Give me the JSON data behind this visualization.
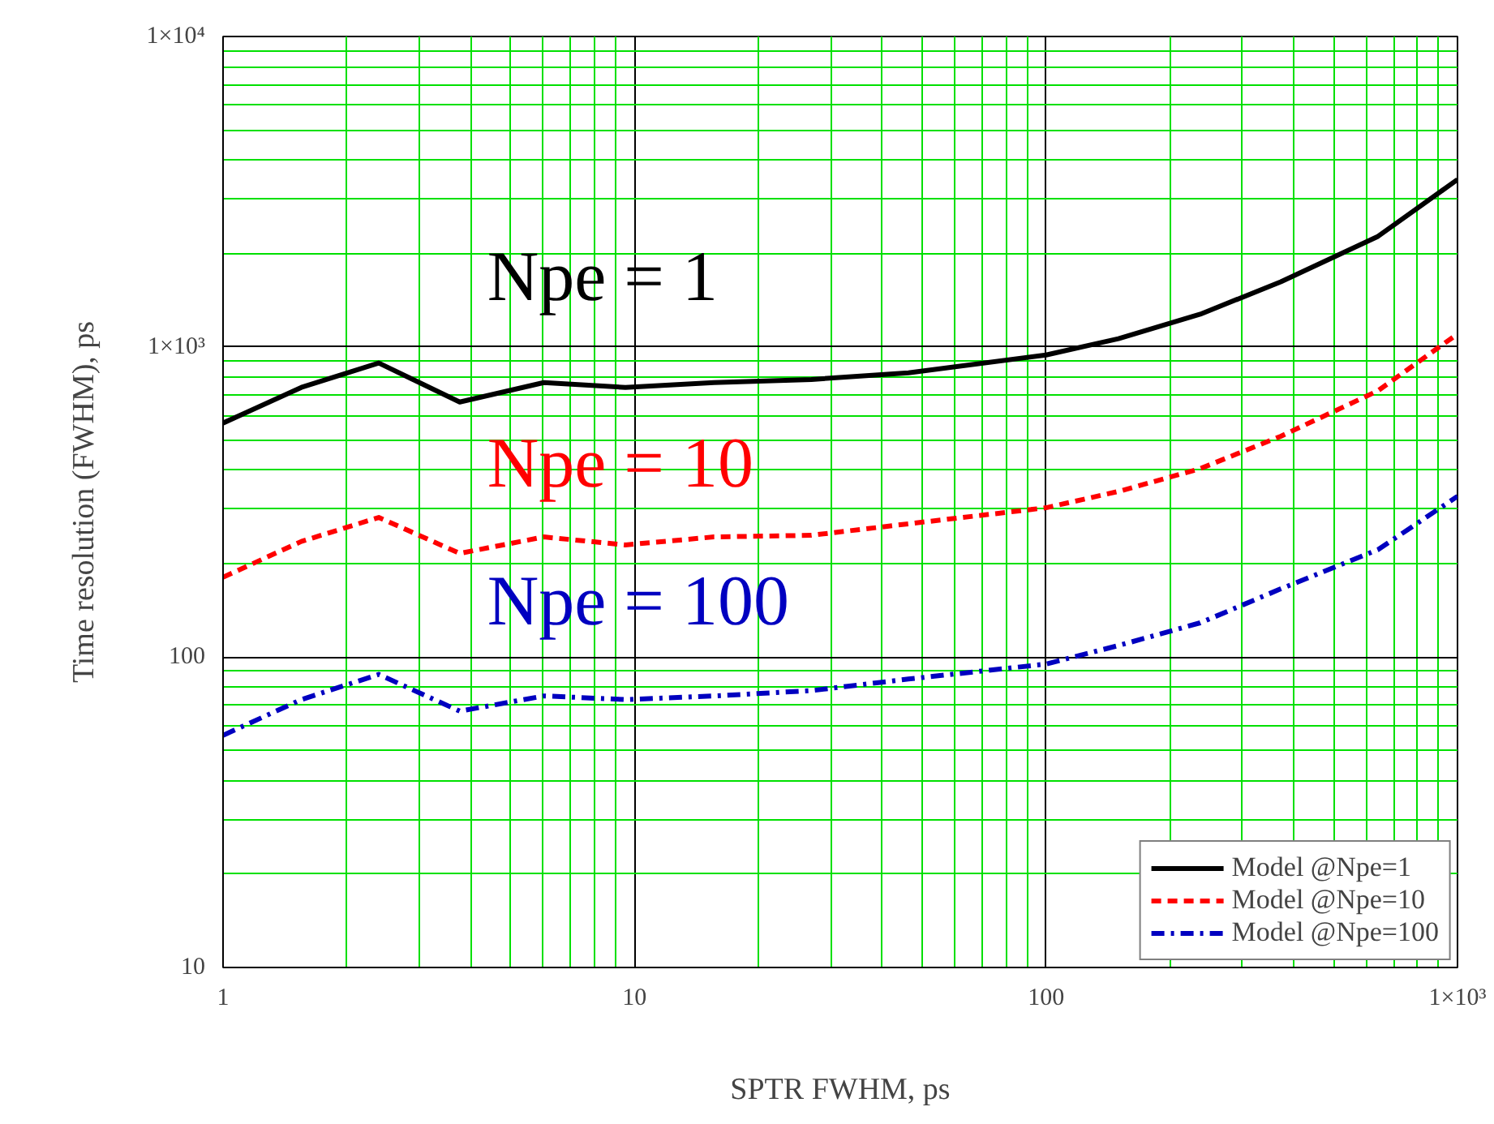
{
  "chart_data": {
    "type": "line",
    "xlabel": "SPTR FWHM, ps",
    "ylabel": "Time resolution (FWHM), ps",
    "log": "xy",
    "grid": true,
    "legend": "bottom right",
    "xlim": [
      1,
      1000
    ],
    "ylim": [
      10,
      10000
    ],
    "xticks": [
      1,
      {
        "value": 2,
        "label": null
      },
      {
        "value": 3,
        "label": null
      },
      {
        "value": 4,
        "label": null
      },
      {
        "value": 5,
        "label": null
      },
      {
        "value": 6,
        "label": null
      },
      {
        "value": 7,
        "label": null
      },
      {
        "value": 8,
        "label": null
      },
      {
        "value": 9,
        "label": null
      },
      10,
      {
        "value": 20,
        "label": null
      },
      {
        "value": 30,
        "label": null
      },
      {
        "value": 40,
        "label": null
      },
      {
        "value": 50,
        "label": null
      },
      {
        "value": 60,
        "label": null
      },
      {
        "value": 70,
        "label": null
      },
      {
        "value": 80,
        "label": null
      },
      {
        "value": 90,
        "label": null
      },
      100,
      {
        "value": 200,
        "label": null
      },
      {
        "value": 300,
        "label": null
      },
      {
        "value": 400,
        "label": null
      },
      {
        "value": 500,
        "label": null
      },
      {
        "value": 600,
        "label": null
      },
      {
        "value": 700,
        "label": null
      },
      {
        "value": 800,
        "label": null
      },
      {
        "value": 900,
        "label": null
      },
      {
        "value": 1000,
        "label": "1×10³"
      }
    ],
    "yticks": [
      10,
      {
        "value": 20,
        "label": null
      },
      {
        "value": 30,
        "label": null
      },
      {
        "value": 40,
        "label": null
      },
      {
        "value": 50,
        "label": null
      },
      {
        "value": 60,
        "label": null
      },
      {
        "value": 70,
        "label": null
      },
      {
        "value": 80,
        "label": null
      },
      {
        "value": 90,
        "label": null
      },
      100,
      {
        "value": 200,
        "label": null
      },
      {
        "value": 300,
        "label": null
      },
      {
        "value": 400,
        "label": null
      },
      {
        "value": 500,
        "label": null
      },
      {
        "value": 600,
        "label": null
      },
      {
        "value": 700,
        "label": null
      },
      {
        "value": 800,
        "label": null
      },
      {
        "value": 900,
        "label": null
      },
      {
        "value": 1000,
        "label": "1×10³"
      },
      {
        "value": 2000,
        "label": null
      },
      {
        "value": 3000,
        "label": null
      },
      {
        "value": 4000,
        "label": null
      },
      {
        "value": 5000,
        "label": null
      },
      {
        "value": 6000,
        "label": null
      },
      {
        "value": 7000,
        "label": null
      },
      {
        "value": 8000,
        "label": null
      },
      {
        "value": 9000,
        "label": null
      },
      {
        "value": 10000,
        "label": "1×10⁴"
      }
    ],
    "x": [
      1,
      1.55,
      2.39,
      3.76,
      6.02,
      9.5,
      15.6,
      26.9,
      46.3,
      100,
      150,
      237,
      372,
      641,
      1000
    ],
    "series": [
      {
        "name": "Model @Npe=1",
        "color": "#000000",
        "line_style": "solid",
        "values": [
          568,
          740,
          887,
          664,
          767,
          740,
          767,
          785,
          824,
          941,
          1062,
          1274,
          1620,
          2270,
          3460
        ]
      },
      {
        "name": "Model @Npe=10",
        "color": "#ff0000",
        "line_style": "dashed",
        "values": [
          181,
          236,
          282,
          216,
          244,
          230,
          244,
          247,
          269,
          303,
          342,
          405,
          515,
          722,
          1100
        ]
      },
      {
        "name": "Model @Npe=100",
        "color": "#0000c0",
        "line_style": "dashdot",
        "values": [
          56,
          73,
          88,
          67,
          75,
          73,
          75,
          78,
          85,
          95,
          109,
          129,
          166,
          222,
          330
        ]
      }
    ],
    "annotations": [
      "Npe = 1",
      "Npe = 10",
      "Npe = 100"
    ]
  }
}
